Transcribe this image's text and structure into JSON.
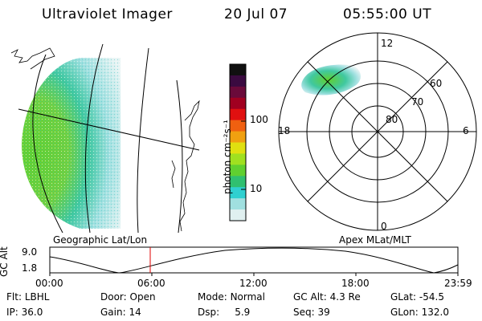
{
  "header": {
    "title": "Ultraviolet Imager",
    "date": "20 Jul 07",
    "time": "05:55:00 UT"
  },
  "colorbar": {
    "unit_label": "photon cm⁻²s⁻¹",
    "ticks": [
      "100",
      "10"
    ],
    "colors": [
      "#101010",
      "#3a0a40",
      "#6a0a3a",
      "#a00020",
      "#e01010",
      "#f06010",
      "#f0a010",
      "#e0e010",
      "#a0e020",
      "#60d030",
      "#30c070",
      "#30d0d0",
      "#a0e0e0",
      "#e0f0f0"
    ]
  },
  "polar_plot": {
    "mlat_labels": [
      "80",
      "70",
      "60"
    ],
    "mlt_labels": {
      "top": "12",
      "left": "18",
      "right": "6",
      "bottom": "0"
    }
  },
  "timeline": {
    "left_caption": "Geographic Lat/Lon",
    "right_caption": "Apex MLat/MLT",
    "axis_label": "GC Alt",
    "y_ticks": [
      "9.0",
      "1.8"
    ],
    "x_ticks": [
      "00:00",
      "06:00",
      "12:00",
      "18:00",
      "23:59"
    ],
    "marker_color": "#e00000"
  },
  "info": {
    "row1": [
      {
        "label": "Flt:",
        "value": "LBHL"
      },
      {
        "label": "Door:",
        "value": "Open"
      },
      {
        "label": "Mode:",
        "value": "Normal"
      },
      {
        "label": "GC Alt:",
        "value": "4.3 Re"
      },
      {
        "label": "GLat:",
        "value": "-54.5"
      }
    ],
    "row2": [
      {
        "label": "IP:",
        "value": "36.0"
      },
      {
        "label": "Gain:",
        "value": "14"
      },
      {
        "label": "Dsp:",
        "value": "5.9"
      },
      {
        "label": "Seq:",
        "value": "39"
      },
      {
        "label": "GLon:",
        "value": "132.0"
      }
    ]
  }
}
